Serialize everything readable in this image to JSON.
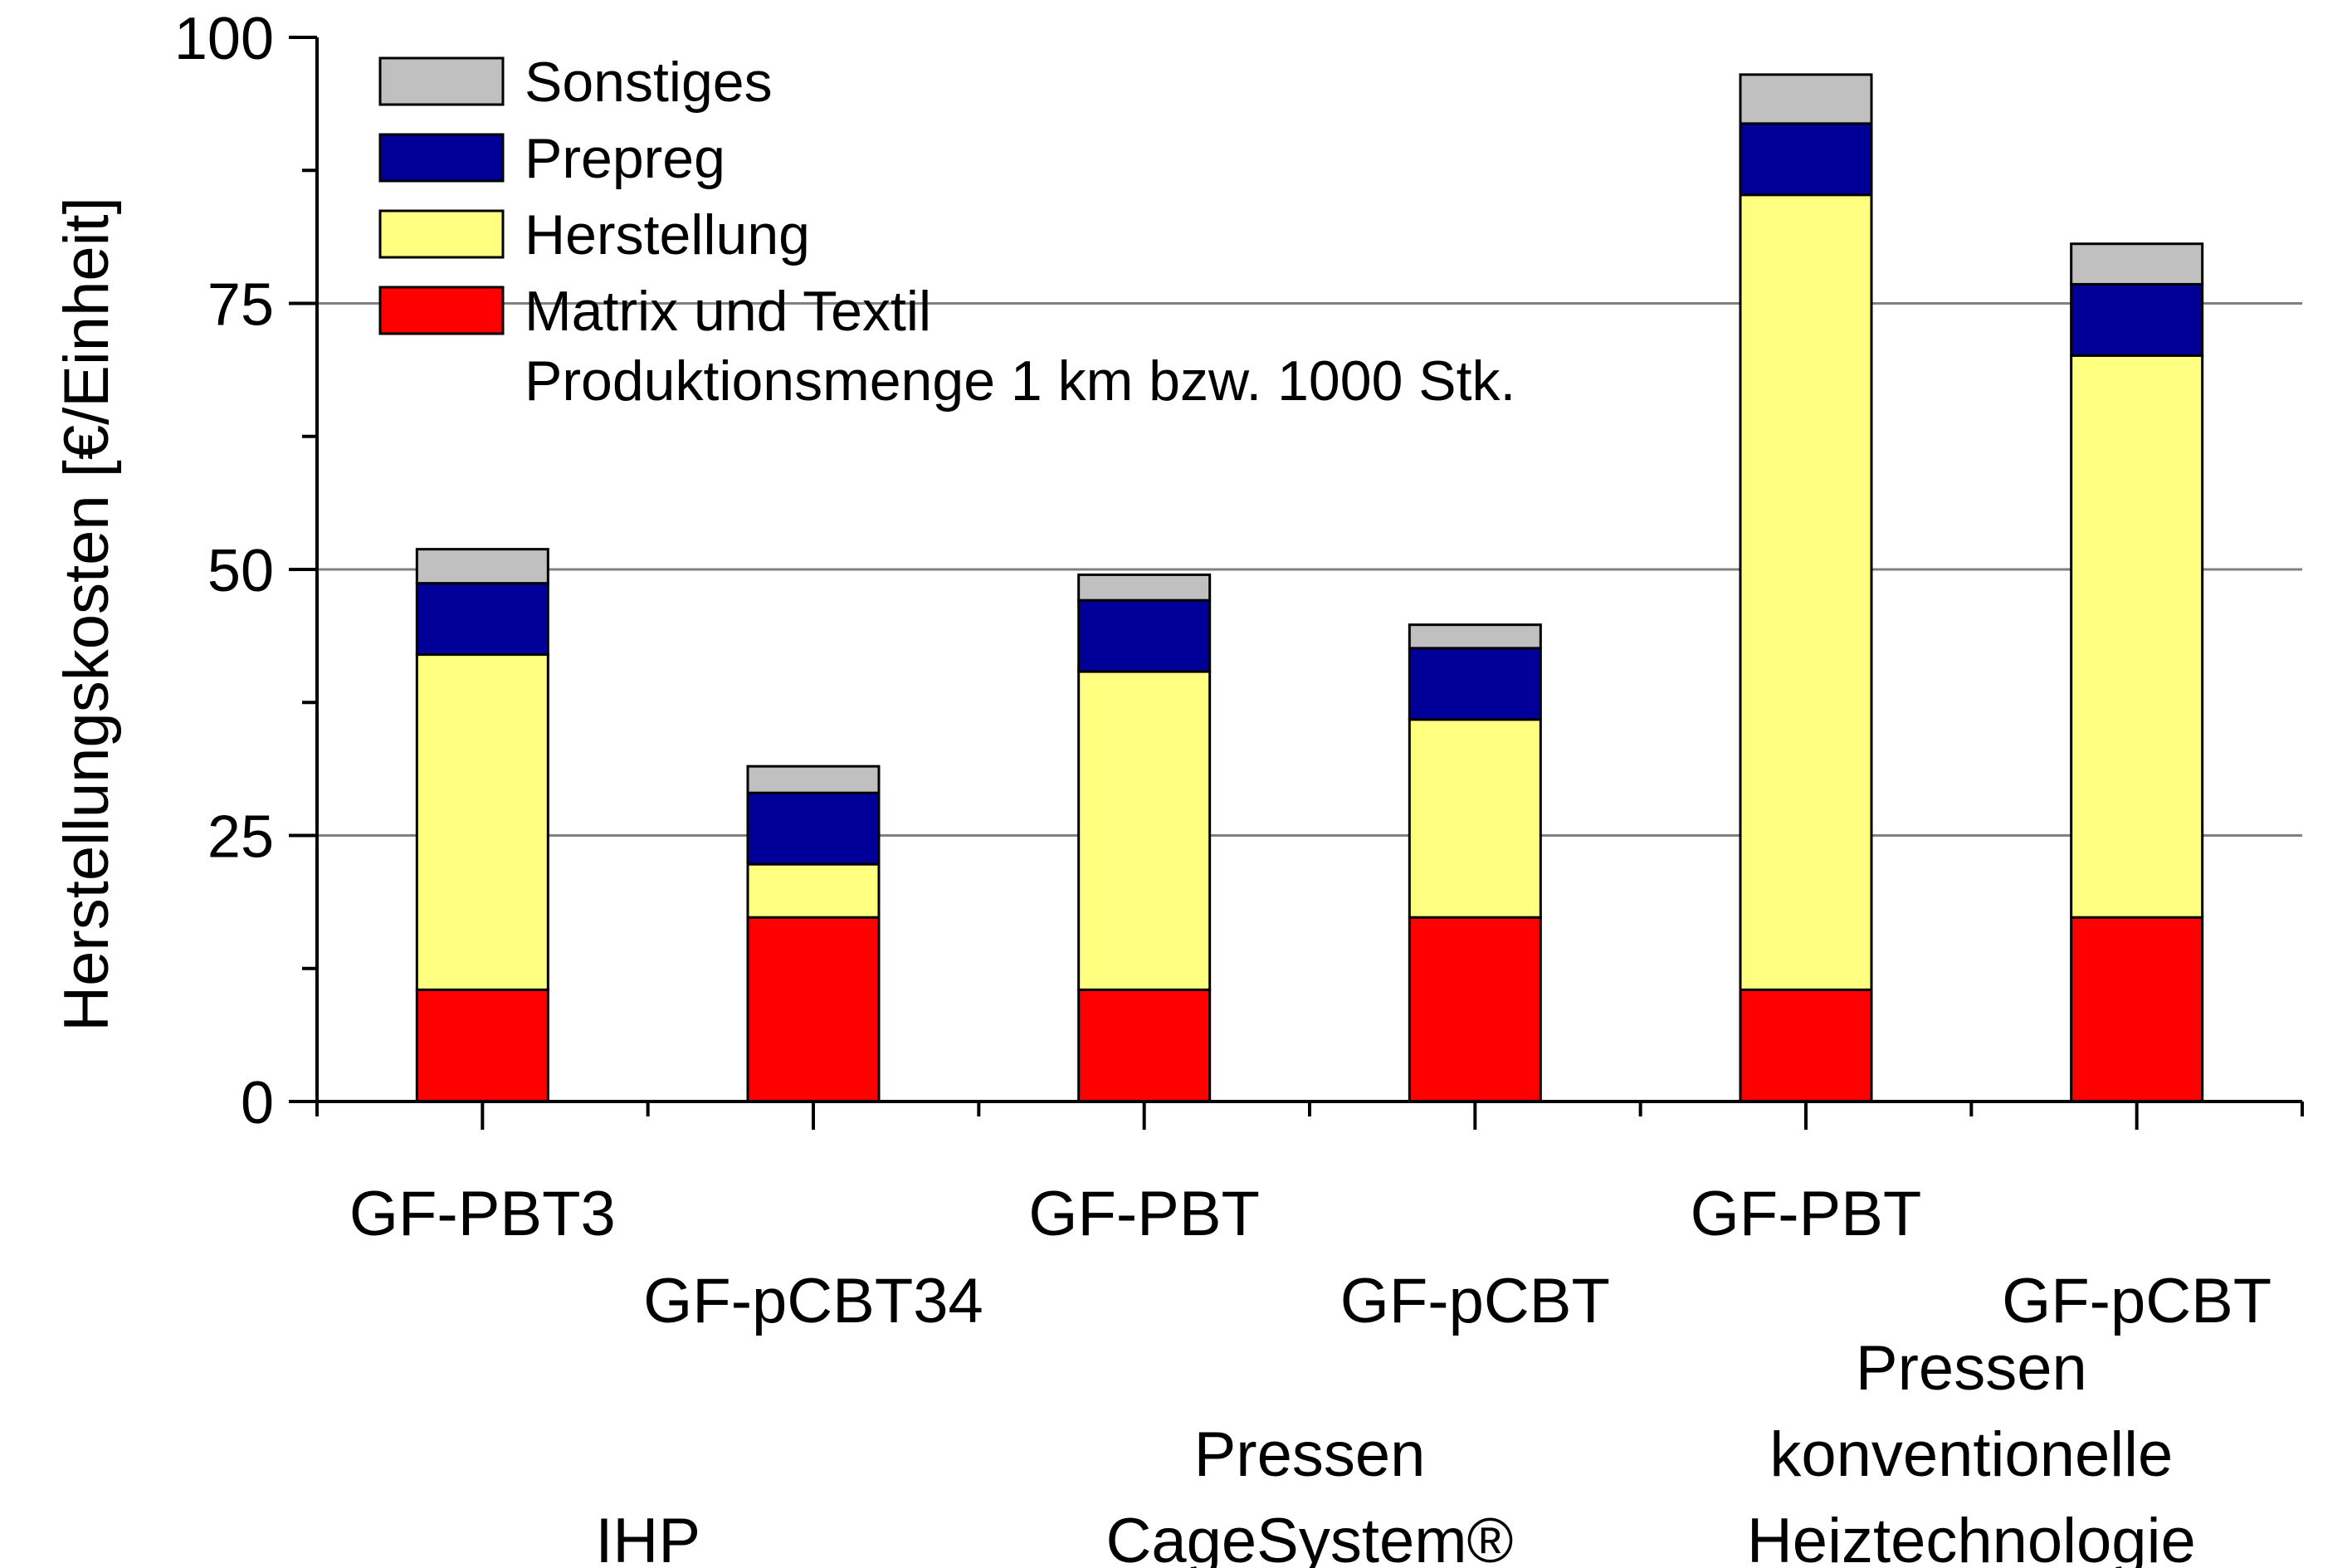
{
  "chart_data": {
    "type": "bar",
    "stacked": true,
    "title": "",
    "xlabel": "",
    "ylabel": "Herstellungskosten [€/Einheit]",
    "ylim": [
      0,
      100
    ],
    "yticks": [
      0,
      25,
      50,
      75,
      100
    ],
    "grid": "horizontal",
    "legend_position": "top-left",
    "note": "Produktionsmenge 1 km bzw. 1000 Stk.",
    "categories": [
      "GF-PBT3",
      "GF-pCBT34",
      "GF-PBT",
      "GF-pCBT",
      "GF-PBT",
      "GF-pCBT"
    ],
    "groups": [
      {
        "lines": [
          "IHP"
        ],
        "categories": [
          0,
          1
        ]
      },
      {
        "lines": [
          "Pressen",
          "CageSystem®"
        ],
        "categories": [
          2,
          3
        ]
      },
      {
        "lines": [
          "Pressen",
          "konventionelle",
          "Heiztechnologie"
        ],
        "categories": [
          4,
          5
        ]
      }
    ],
    "series": [
      {
        "name": "Matrix und Textil",
        "color": "#ff0000",
        "values": [
          10.5,
          17.3,
          10.5,
          17.3,
          10.5,
          17.3
        ]
      },
      {
        "name": "Herstellung",
        "color": "#ffff80",
        "values": [
          31.5,
          5.0,
          29.9,
          18.6,
          74.7,
          52.8
        ]
      },
      {
        "name": "Prepreg",
        "color": "#000099",
        "values": [
          6.7,
          6.7,
          6.7,
          6.7,
          6.7,
          6.7
        ]
      },
      {
        "name": "Sonstiges",
        "color": "#c0c0c0",
        "values": [
          3.2,
          2.5,
          2.4,
          2.2,
          4.6,
          3.8
        ]
      }
    ],
    "legend_order": [
      "Sonstiges",
      "Prepreg",
      "Herstellung",
      "Matrix und Textil"
    ]
  }
}
